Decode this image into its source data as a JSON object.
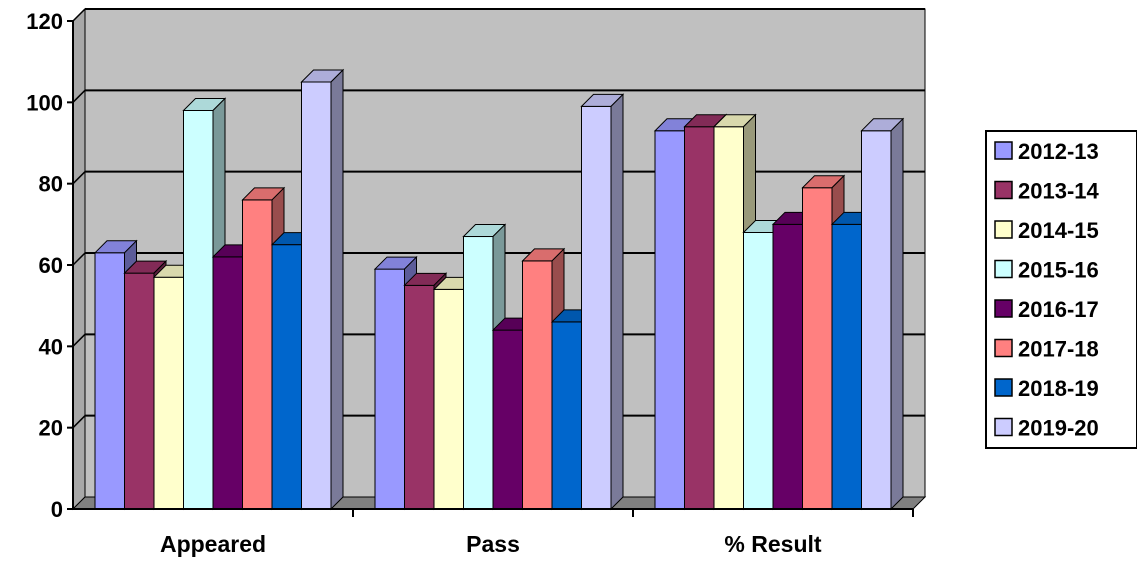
{
  "chart_data": {
    "type": "bar",
    "title": "",
    "xlabel": "",
    "ylabel": "",
    "ylim": [
      0,
      120
    ],
    "yticks": [
      0,
      20,
      40,
      60,
      80,
      100,
      120
    ],
    "categories": [
      "Appeared",
      "Pass",
      "% Result"
    ],
    "grid": true,
    "legend_position": "right",
    "colors": {
      "plot_background": "#c0c0c0",
      "floor": "#808080"
    },
    "series": [
      {
        "name": "2012-13",
        "color": "#9999ff",
        "values": [
          63,
          59,
          93
        ]
      },
      {
        "name": "2013-14",
        "color": "#993366",
        "values": [
          58,
          55,
          94
        ]
      },
      {
        "name": "2014-15",
        "color": "#ffffcc",
        "values": [
          57,
          54,
          94
        ]
      },
      {
        "name": "2015-16",
        "color": "#ccffff",
        "values": [
          98,
          67,
          68
        ]
      },
      {
        "name": "2016-17",
        "color": "#660066",
        "values": [
          62,
          44,
          70
        ]
      },
      {
        "name": "2017-18",
        "color": "#ff8080",
        "values": [
          76,
          61,
          79
        ]
      },
      {
        "name": "2018-19",
        "color": "#0066cc",
        "values": [
          65,
          46,
          70
        ]
      },
      {
        "name": "2019-20",
        "color": "#ccccff",
        "values": [
          105,
          99,
          93
        ]
      }
    ]
  }
}
